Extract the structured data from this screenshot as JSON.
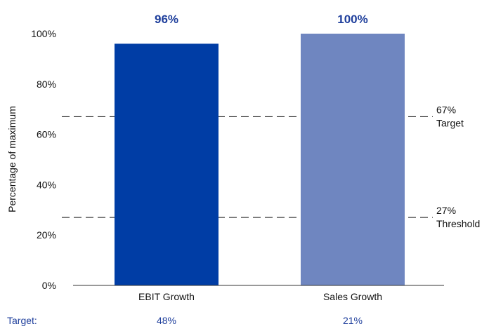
{
  "chart_data": {
    "type": "bar",
    "categories": [
      "EBIT Growth",
      "Sales Growth"
    ],
    "values": [
      96,
      100
    ],
    "value_labels": [
      "96%",
      "100%"
    ],
    "bar_colors": [
      "#003da5",
      "#6f86c0"
    ],
    "value_label_color": "#1f3f9c",
    "title": "",
    "xlabel": "",
    "ylabel": "Percentage of maximum",
    "ylim": [
      0,
      100
    ],
    "yticks": [
      0,
      20,
      40,
      60,
      80,
      100
    ],
    "ytick_labels": [
      "0%",
      "20%",
      "40%",
      "60%",
      "80%",
      "100%"
    ],
    "grid": false,
    "reference_lines": [
      {
        "value": 67,
        "value_label": "67%",
        "label": "Target",
        "style": "dashed"
      },
      {
        "value": 27,
        "value_label": "27%",
        "label": "Threshold",
        "style": "dashed"
      }
    ],
    "footer": {
      "label": "Target:",
      "values": [
        "48%",
        "21%"
      ],
      "color": "#1f3f9c"
    }
  }
}
